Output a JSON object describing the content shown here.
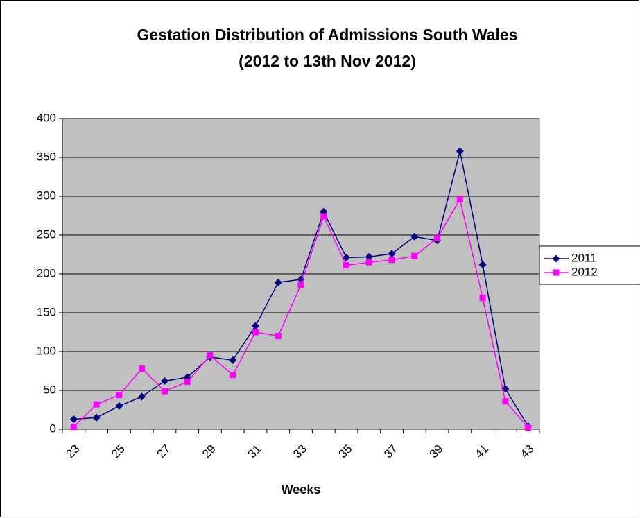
{
  "chart_data": {
    "type": "line",
    "title": [
      "Gestation Distribution of Admissions South Wales",
      "(2012 to 13th Nov 2012)"
    ],
    "x_label": "Weeks",
    "categories": [
      23,
      null,
      25,
      null,
      27,
      null,
      29,
      null,
      31,
      null,
      33,
      null,
      35,
      null,
      37,
      null,
      39,
      null,
      41,
      null,
      43
    ],
    "series": [
      {
        "name": "2011",
        "color": "#000080",
        "marker": "diamond",
        "values": [
          13,
          15,
          30,
          42,
          62,
          67,
          93,
          89,
          133,
          189,
          193,
          280,
          221,
          222,
          226,
          248,
          243,
          358,
          212,
          52,
          4
        ]
      },
      {
        "name": "2012",
        "color": "#ff00ff",
        "marker": "square",
        "values": [
          3,
          32,
          44,
          78,
          49,
          61,
          95,
          70,
          125,
          120,
          186,
          274,
          211,
          215,
          218,
          223,
          246,
          296,
          169,
          36,
          2
        ]
      }
    ],
    "ylim": [
      0,
      400
    ],
    "yticks": [
      0,
      50,
      100,
      150,
      200,
      250,
      300,
      350,
      400
    ],
    "grid": true,
    "legend": "right",
    "plot_background": "#c0c0c0"
  }
}
